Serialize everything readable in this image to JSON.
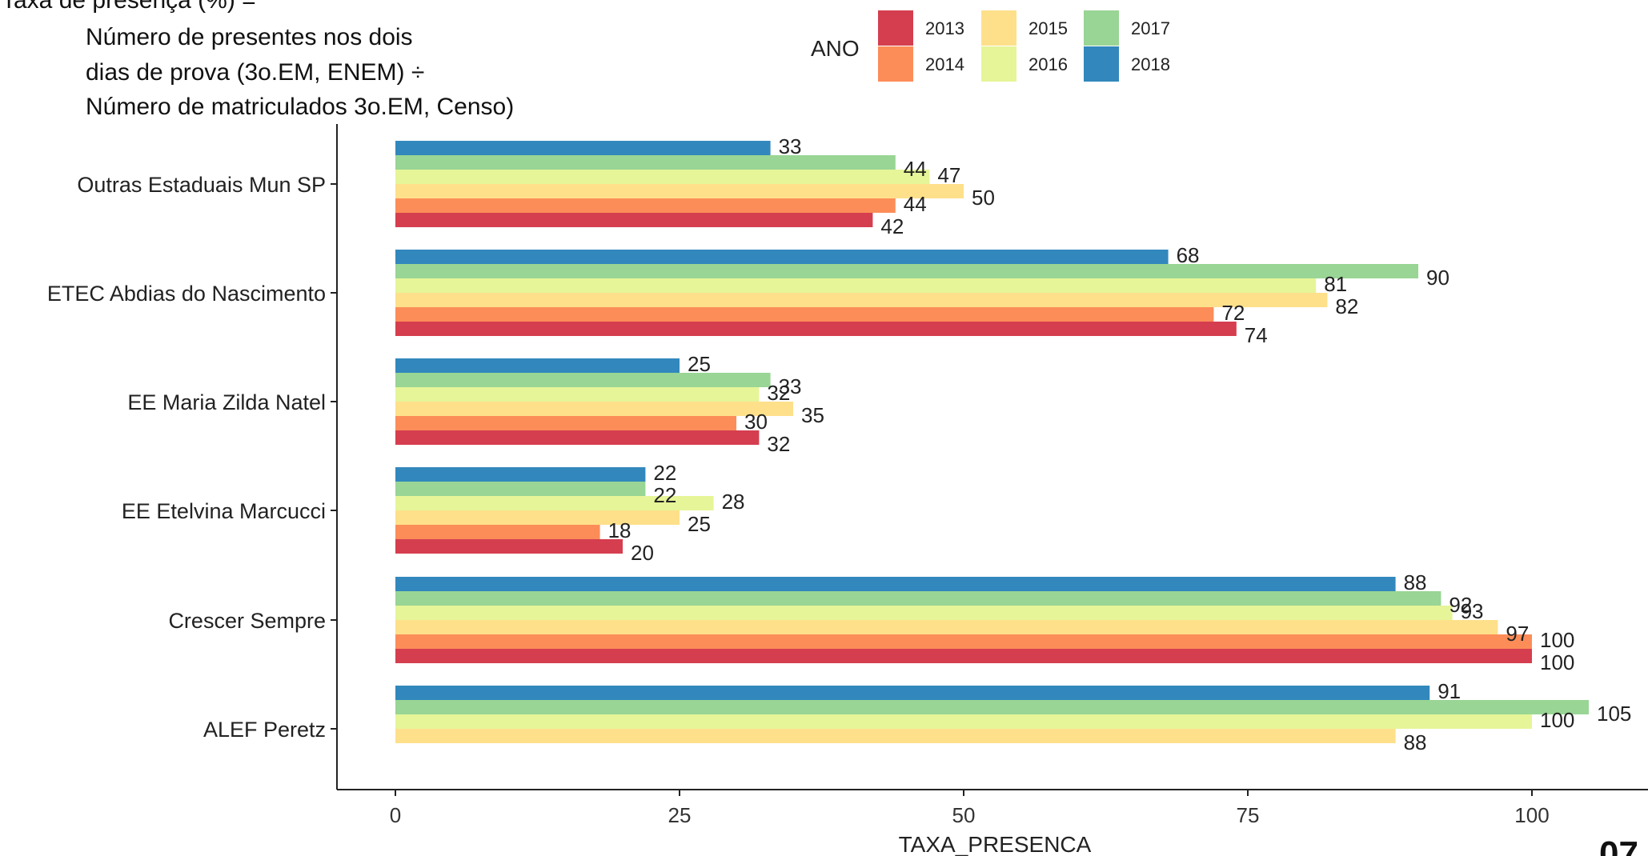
{
  "description_lines": [
    "Taxa de presença (%) =",
    "Número de presentes nos dois",
    "dias de prova (3o.EM, ENEM) ÷",
    "Número de matriculados 3o.EM, Censo)"
  ],
  "page_marker": "07",
  "chart_data": {
    "type": "bar",
    "orientation": "horizontal",
    "xlabel": "TAXA_PRESENCA",
    "ylabel": "",
    "xlim": [
      -5,
      108
    ],
    "xticks": [
      0,
      25,
      50,
      75,
      100
    ],
    "grid": false,
    "legend": {
      "title": "ANO",
      "placement": "top-center"
    },
    "categories": [
      "Outras Estaduais Mun SP",
      "ETEC Abdias do Nascimento",
      "EE Maria Zilda Natel",
      "EE Etelvina Marcucci",
      "Crescer Sempre",
      "ALEF Peretz"
    ],
    "series": [
      {
        "name": "2013",
        "color": "#d53e4f",
        "values": [
          42,
          74,
          32,
          20,
          100,
          null
        ]
      },
      {
        "name": "2014",
        "color": "#fc8d59",
        "values": [
          44,
          72,
          30,
          18,
          100,
          null
        ]
      },
      {
        "name": "2015",
        "color": "#fee08b",
        "values": [
          50,
          82,
          35,
          25,
          97,
          88
        ]
      },
      {
        "name": "2016",
        "color": "#e6f598",
        "values": [
          47,
          81,
          32,
          28,
          93,
          100
        ]
      },
      {
        "name": "2017",
        "color": "#99d594",
        "values": [
          44,
          90,
          33,
          22,
          92,
          105
        ]
      },
      {
        "name": "2018",
        "color": "#3288bd",
        "values": [
          33,
          68,
          25,
          22,
          88,
          91
        ]
      }
    ]
  }
}
